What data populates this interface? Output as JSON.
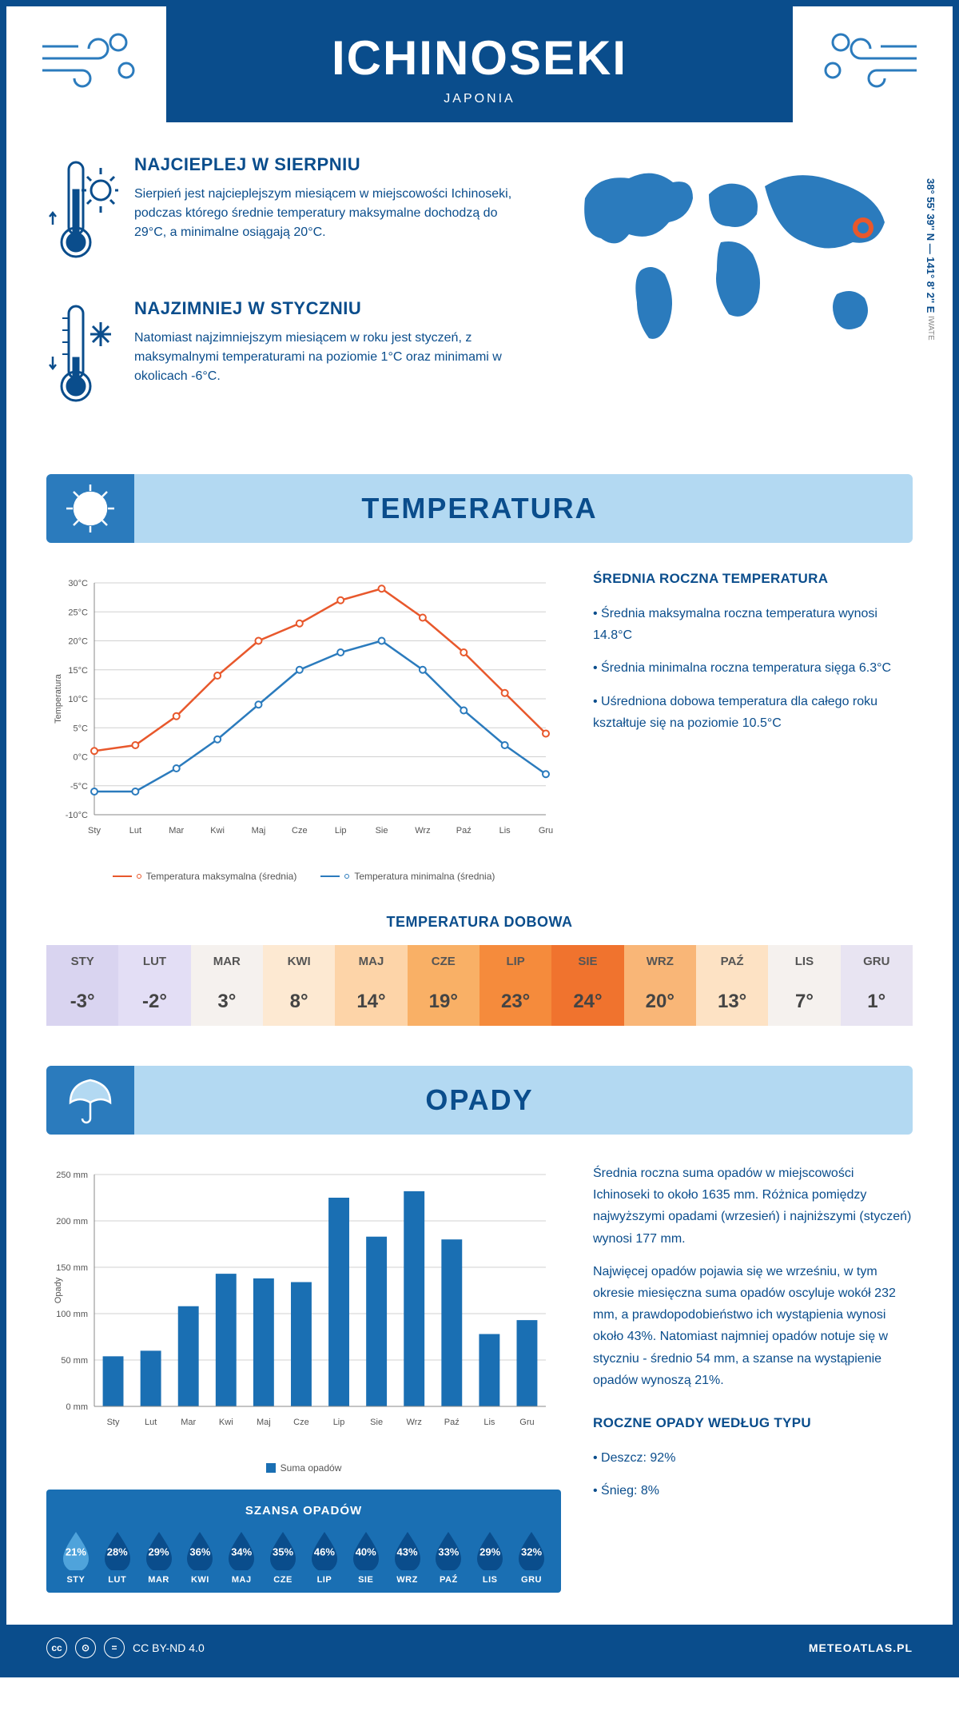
{
  "header": {
    "city": "ICHINOSEKI",
    "country": "JAPONIA"
  },
  "coords": {
    "text": "38° 55' 39'' N — 141° 8' 2'' E",
    "region": "IWATE"
  },
  "hottest": {
    "title": "NAJCIEPLEJ W SIERPNIU",
    "text": "Sierpień jest najcieplejszym miesiącem w miejscowości Ichinoseki, podczas którego średnie temperatury maksymalne dochodzą do 29°C, a minimalne osiągają 20°C."
  },
  "coldest": {
    "title": "NAJZIMNIEJ W STYCZNIU",
    "text": "Natomiast najzimniejszym miesiącem w roku jest styczeń, z maksymalnymi temperaturami na poziomie 1°C oraz minimami w okolicach -6°C."
  },
  "temp_section": {
    "title": "TEMPERATURA"
  },
  "temp_chart": {
    "months": [
      "Sty",
      "Lut",
      "Mar",
      "Kwi",
      "Maj",
      "Cze",
      "Lip",
      "Sie",
      "Wrz",
      "Paź",
      "Lis",
      "Gru"
    ],
    "max": [
      1,
      2,
      7,
      14,
      20,
      23,
      27,
      29,
      24,
      18,
      11,
      4
    ],
    "min": [
      -6,
      -6,
      -2,
      3,
      9,
      15,
      18,
      20,
      15,
      8,
      2,
      -3
    ],
    "ylabel": "Temperatura",
    "ylim": [
      -10,
      30
    ],
    "ytick_step": 5,
    "max_color": "#e8582c",
    "min_color": "#2b7bbd",
    "legend_max": "Temperatura maksymalna (średnia)",
    "legend_min": "Temperatura minimalna (średnia)",
    "grid_color": "#d0d0d0",
    "axis_fontsize": 11
  },
  "temp_side": {
    "title": "ŚREDNIA ROCZNA TEMPERATURA",
    "items": [
      "Średnia maksymalna roczna temperatura wynosi 14.8°C",
      "Średnia minimalna roczna temperatura sięga 6.3°C",
      "Uśredniona dobowa temperatura dla całego roku kształtuje się na poziomie 10.5°C"
    ]
  },
  "daily": {
    "title": "TEMPERATURA DOBOWA",
    "months": [
      "STY",
      "LUT",
      "MAR",
      "KWI",
      "MAJ",
      "CZE",
      "LIP",
      "SIE",
      "WRZ",
      "PAŹ",
      "LIS",
      "GRU"
    ],
    "values": [
      "-3°",
      "-2°",
      "3°",
      "8°",
      "14°",
      "19°",
      "23°",
      "24°",
      "20°",
      "13°",
      "7°",
      "1°"
    ],
    "bg_colors": [
      "#d9d4f0",
      "#e3def5",
      "#f5f1ee",
      "#fde9d2",
      "#fdd4a8",
      "#f9b066",
      "#f58b3c",
      "#f0732e",
      "#f9b677",
      "#fde2c4",
      "#f5f1ee",
      "#e8e4f2"
    ]
  },
  "precip_section": {
    "title": "OPADY"
  },
  "precip_chart": {
    "months": [
      "Sty",
      "Lut",
      "Mar",
      "Kwi",
      "Maj",
      "Cze",
      "Lip",
      "Sie",
      "Wrz",
      "Paź",
      "Lis",
      "Gru"
    ],
    "values": [
      54,
      60,
      108,
      143,
      138,
      134,
      225,
      183,
      232,
      180,
      78,
      93
    ],
    "ylabel": "Opady",
    "ylim": [
      0,
      250
    ],
    "ytick_step": 50,
    "bar_color": "#1a6fb3",
    "grid_color": "#d0d0d0",
    "legend": "Suma opadów",
    "unit": "mm"
  },
  "precip_side": {
    "p1": "Średnia roczna suma opadów w miejscowości Ichinoseki to około 1635 mm. Różnica pomiędzy najwyższymi opadami (wrzesień) i najniższymi (styczeń) wynosi 177 mm.",
    "p2": "Najwięcej opadów pojawia się we wrześniu, w tym okresie miesięczna suma opadów oscyluje wokół 232 mm, a prawdopodobieństwo ich wystąpienia wynosi około 43%. Natomiast najmniej opadów notuje się w styczniu - średnio 54 mm, a szanse na wystąpienie opadów wynoszą 21%.",
    "type_title": "ROCZNE OPADY WEDŁUG TYPU",
    "types": [
      "Deszcz: 92%",
      "Śnieg: 8%"
    ]
  },
  "chance": {
    "title": "SZANSA OPADÓW",
    "months": [
      "STY",
      "LUT",
      "MAR",
      "KWI",
      "MAJ",
      "CZE",
      "LIP",
      "SIE",
      "WRZ",
      "PAŹ",
      "LIS",
      "GRU"
    ],
    "values": [
      "21%",
      "28%",
      "29%",
      "36%",
      "34%",
      "35%",
      "46%",
      "40%",
      "43%",
      "33%",
      "29%",
      "32%"
    ],
    "colors": [
      "#4fa3db",
      "#0a4d8c",
      "#0a4d8c",
      "#0a4d8c",
      "#0a4d8c",
      "#0a4d8c",
      "#0a4d8c",
      "#0a4d8c",
      "#0a4d8c",
      "#0a4d8c",
      "#0a4d8c",
      "#0a4d8c"
    ]
  },
  "footer": {
    "license": "CC BY-ND 4.0",
    "site": "METEOATLAS.PL"
  }
}
